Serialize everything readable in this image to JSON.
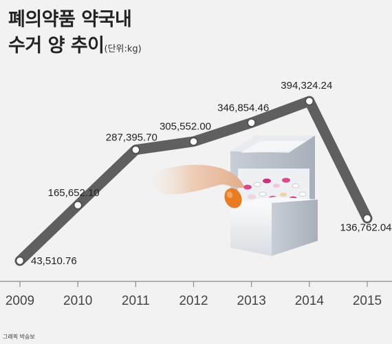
{
  "title": {
    "line1": "폐의약품 약국내",
    "line2": "수거 양 추이",
    "unit": "(단위:kg)"
  },
  "credit": "그래픽 박승보",
  "chart_data": {
    "type": "line",
    "categories": [
      "2009",
      "2010",
      "2011",
      "2012",
      "2013",
      "2014",
      "2015"
    ],
    "values": [
      43510.76,
      165652.1,
      287395.7,
      305552.0,
      346854.46,
      394324.24,
      136762.04
    ],
    "data_labels": [
      "43,510.76",
      "165,652.10",
      "287,395.70",
      "305,552.00",
      "346,854.46",
      "394,324.24",
      "136,762.04"
    ],
    "ylim": [
      43510.76,
      394324.24
    ],
    "grid": false,
    "line_color": "#5f5f5f",
    "marker_color": "#ffffff",
    "axis_color": "#8a8a8a"
  }
}
